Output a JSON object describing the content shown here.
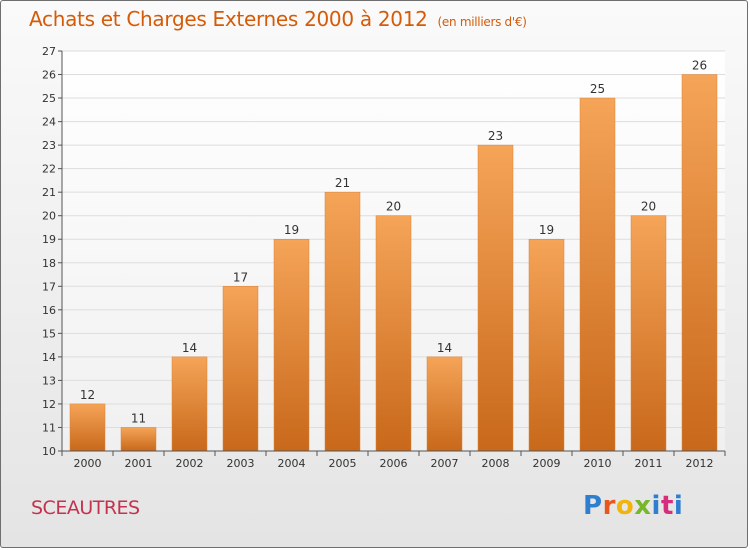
{
  "header": {
    "title": "Achats et Charges Externes 2000 à 2012",
    "subtitle": "(en milliers d'€)"
  },
  "footer": {
    "city": "SCEAUTRES",
    "logo_text": "Proxiti"
  },
  "colors": {
    "title": "#d55b08",
    "city": "#c3334f",
    "bar_top": "#f5a458",
    "bar_bottom": "#c8681a",
    "grid": "#dddddd",
    "axis": "#555555"
  },
  "chart_data": {
    "type": "bar",
    "title": "Achats et Charges Externes 2000 à 2012",
    "subtitle": "(en milliers d'€)",
    "xlabel": "",
    "ylabel": "",
    "categories": [
      "2000",
      "2001",
      "2002",
      "2003",
      "2004",
      "2005",
      "2006",
      "2007",
      "2008",
      "2009",
      "2010",
      "2011",
      "2012"
    ],
    "values": [
      12,
      11,
      14,
      17,
      19,
      21,
      20,
      14,
      23,
      19,
      25,
      20,
      26
    ],
    "ylim": [
      10,
      27
    ],
    "yticks": [
      10,
      11,
      12,
      13,
      14,
      15,
      16,
      17,
      18,
      19,
      20,
      21,
      22,
      23,
      24,
      25,
      26,
      27
    ],
    "grid": true,
    "data_labels": true
  }
}
